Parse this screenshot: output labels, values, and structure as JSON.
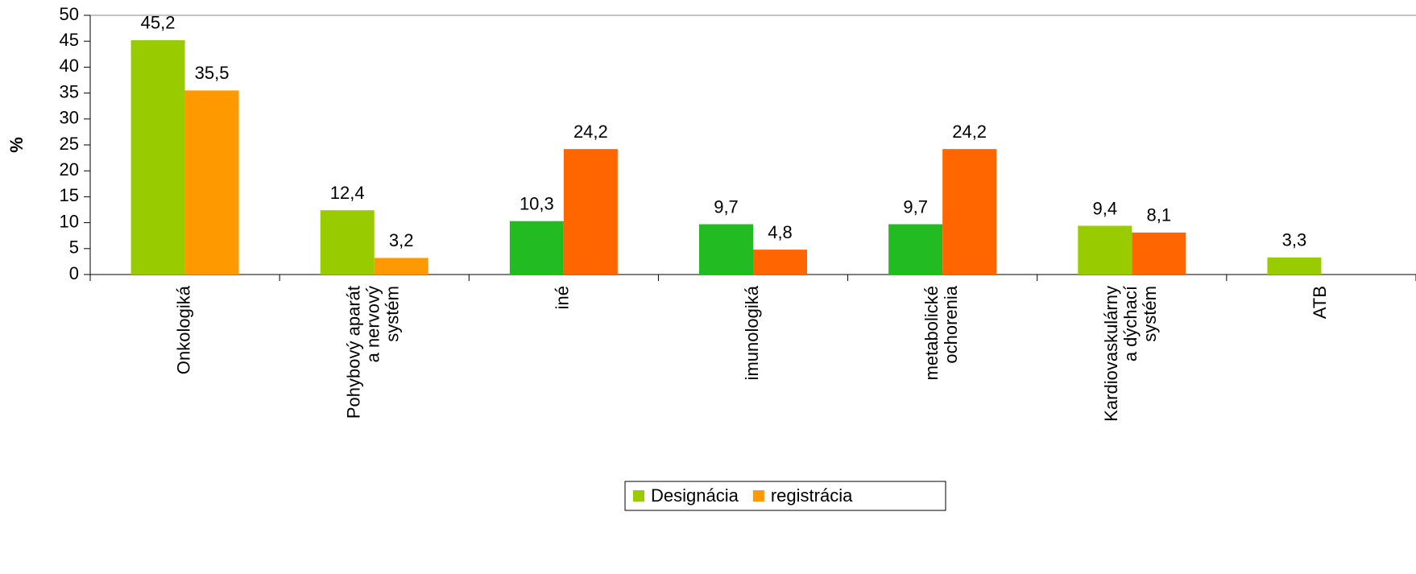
{
  "chart_data": {
    "type": "bar",
    "y_label": "%",
    "categories": [
      [
        "Onkologiká"
      ],
      [
        "Pohybový aparát",
        "a nervový",
        "systém"
      ],
      [
        "iné"
      ],
      [
        "imunologiká"
      ],
      [
        "metabolické",
        "ochorenia"
      ],
      [
        "Kardiovaskulárny",
        "a dýchací",
        "systém"
      ],
      [
        "ATB"
      ]
    ],
    "series": [
      {
        "name": "Designácia",
        "color": "#99cc00",
        "colors": [
          "#99cc00",
          "#99cc00",
          "#22bb22",
          "#22bb22",
          "#22bb22",
          "#99cc00",
          "#99cc00"
        ],
        "values": [
          45.2,
          12.4,
          10.3,
          9.7,
          9.7,
          9.4,
          3.3
        ],
        "value_labels": [
          "45,2",
          "12,4",
          "10,3",
          "9,7",
          "9,7",
          "9,4",
          "3,3"
        ]
      },
      {
        "name": "registrácia",
        "color": "#ff9900",
        "colors": [
          "#ff9900",
          "#ff9900",
          "#ff6600",
          "#ff6600",
          "#ff6600",
          "#ff6600",
          "#ff6600"
        ],
        "values": [
          35.5,
          3.2,
          24.2,
          4.8,
          24.2,
          8.1,
          null
        ],
        "value_labels": [
          "35,5",
          "3,2",
          "24,2",
          "4,8",
          "24,2",
          "8,1",
          null
        ]
      }
    ],
    "ylim": [
      0,
      50
    ],
    "yticks": [
      0,
      5,
      10,
      15,
      20,
      25,
      30,
      35,
      40,
      45,
      50
    ],
    "legend": "bottom"
  }
}
